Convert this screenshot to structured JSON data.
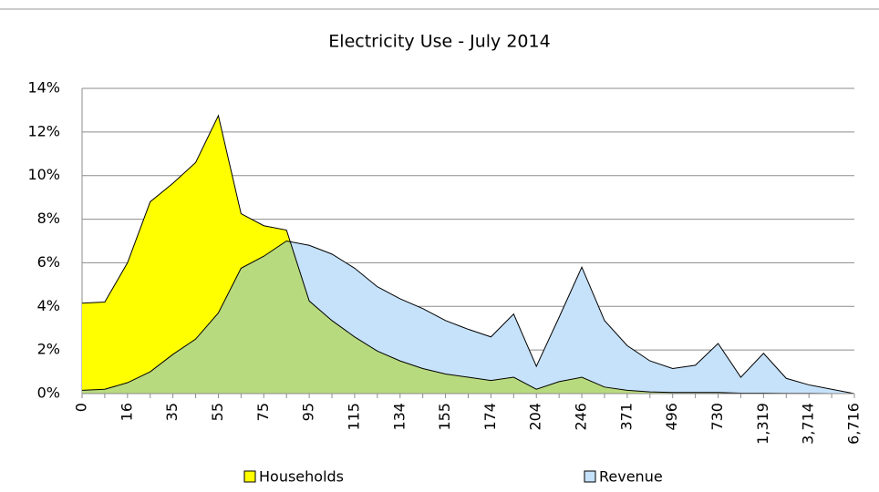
{
  "chart_data": {
    "type": "area",
    "title": "Electricity Use - July 2014",
    "categories": [
      "0",
      null,
      "16",
      null,
      "35",
      null,
      "55",
      null,
      "75",
      null,
      "95",
      null,
      "115",
      null,
      "134",
      null,
      "155",
      null,
      "174",
      null,
      "204",
      null,
      "246",
      null,
      "371",
      null,
      "496",
      null,
      "730",
      null,
      "1,319",
      null,
      "3,714",
      null,
      "6,716"
    ],
    "series": [
      {
        "name": "Households",
        "color": "#ffff00",
        "values": [
          4.15,
          4.2,
          6.0,
          8.8,
          9.65,
          10.6,
          12.75,
          8.25,
          7.7,
          7.5,
          4.25,
          3.35,
          2.6,
          1.95,
          1.5,
          1.15,
          0.9,
          0.75,
          0.6,
          0.75,
          0.2,
          0.55,
          0.75,
          0.3,
          0.15,
          0.08,
          0.05,
          0.05,
          0.05,
          0.02,
          0.02,
          0.01,
          0.01,
          0,
          0
        ]
      },
      {
        "name": "Revenue",
        "color": "#c6e2fa",
        "values": [
          0.15,
          0.2,
          0.5,
          1.0,
          1.8,
          2.5,
          3.7,
          5.75,
          6.3,
          7.0,
          6.8,
          6.4,
          5.75,
          4.9,
          4.35,
          3.9,
          3.35,
          2.95,
          2.6,
          3.65,
          1.25,
          3.5,
          5.8,
          3.35,
          2.2,
          1.5,
          1.15,
          1.3,
          2.3,
          0.75,
          1.85,
          0.7,
          0.4,
          0.2,
          0
        ]
      }
    ],
    "overlap_color": "#b8da7e",
    "ylim": [
      0,
      14
    ],
    "yticks": [
      {
        "value": 0,
        "label": "0%"
      },
      {
        "value": 2,
        "label": "2%"
      },
      {
        "value": 4,
        "label": "4%"
      },
      {
        "value": 6,
        "label": "6%"
      },
      {
        "value": 8,
        "label": "8%"
      },
      {
        "value": 10,
        "label": "10%"
      },
      {
        "value": 12,
        "label": "12%"
      },
      {
        "value": 14,
        "label": "14%"
      }
    ],
    "grid": true,
    "legend": "bottom"
  }
}
